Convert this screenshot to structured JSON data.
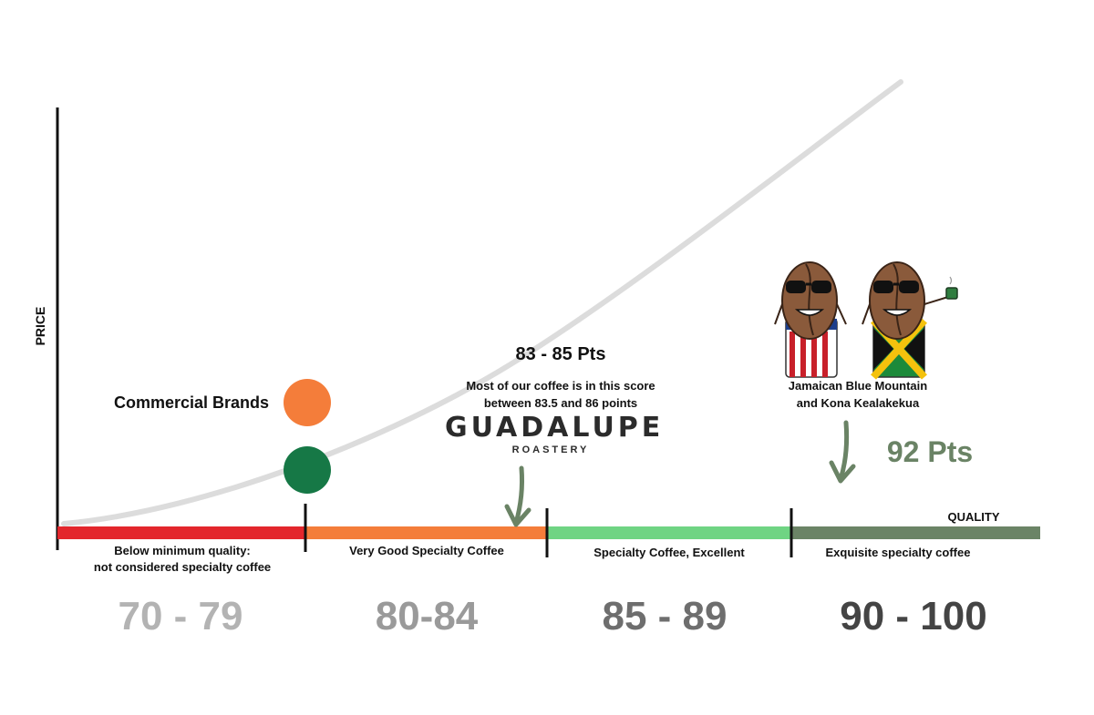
{
  "axis": {
    "y_label": "PRICE",
    "x_label": "QUALITY"
  },
  "segments": [
    {
      "label": "Below minimum quality:\nnot considered specialty coffee",
      "range": "70 - 79",
      "color": "#e3262c",
      "range_color": "#b3b3b3"
    },
    {
      "label": "Very Good Specialty Coffee",
      "range": "80-84",
      "color": "#f47d3a",
      "range_color": "#9a9a9a"
    },
    {
      "label": "Specialty Coffee, Excellent",
      "range": "85 - 89",
      "color": "#6fd483",
      "range_color": "#6e6e6e"
    },
    {
      "label": "Exquisite specialty coffee",
      "range": "90 - 100",
      "color": "#6b8466",
      "range_color": "#444444"
    }
  ],
  "commercial": {
    "label": "Commercial Brands",
    "colors": [
      "#f47d3a",
      "#167846"
    ]
  },
  "highlight_83": {
    "title": "83 - 85 Pts",
    "note_line1": "Most of our coffee is in this score",
    "note_line2": "between 83.5 and 86 points",
    "brand": "GUADALUPE",
    "brand_sub": "ROASTERY"
  },
  "highlight_92": {
    "origin_line1": "Jamaican Blue Mountain",
    "origin_line2": "and  Kona Kealakekua",
    "score": "92 Pts",
    "icons": [
      "coffee-bean-mascot-icon",
      "coffee-bean-mascot-icon"
    ]
  },
  "colors": {
    "curve": "#dcdcdc",
    "arrow": "#6a8365",
    "axis": "#111111"
  }
}
